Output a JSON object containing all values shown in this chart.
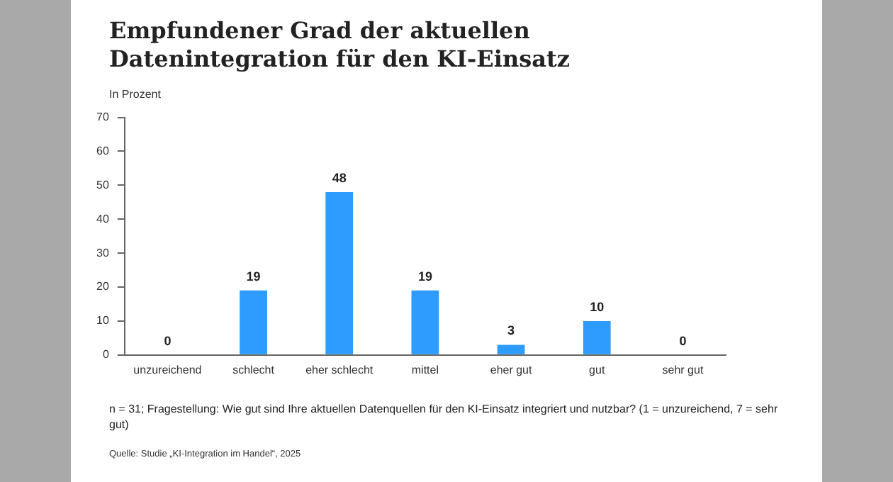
{
  "chart_data": {
    "type": "bar",
    "title": "Empfundener Grad der aktuellen Datenintegration für den KI-Einsatz",
    "ylabel": "In Prozent",
    "categories": [
      "unzureichend",
      "schlecht",
      "eher schlecht",
      "mittel",
      "eher gut",
      "gut",
      "sehr gut"
    ],
    "values": [
      0,
      19,
      48,
      19,
      3,
      10,
      0
    ],
    "color": "#2e9bff",
    "ylim": [
      0,
      70
    ],
    "yticks": [
      0,
      10,
      20,
      30,
      40,
      50,
      60,
      70
    ],
    "grid": false,
    "legend": false,
    "data_labels": true,
    "annotations": [
      "n = 31; Fragestellung: Wie gut sind Ihre aktuellen Datenquellen für den KI-Einsatz integriert und nutzbar? (1 = unzureichend, 7 = sehr gut)",
      "Quelle: Studie „KI-Integration im Handel“, 2025"
    ]
  }
}
